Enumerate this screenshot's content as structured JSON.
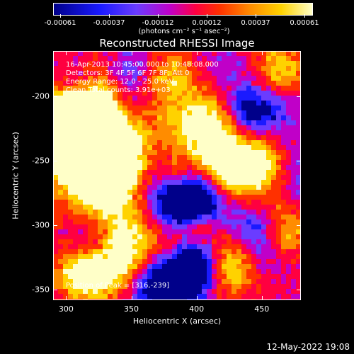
{
  "colorbar": {
    "tick_labels": [
      "-0.00061",
      "-0.00037",
      "-0.00012",
      "0.00012",
      "0.00037",
      "0.00061"
    ],
    "units": "(photons cm⁻² s⁻¹ asec⁻²)",
    "colormap": [
      "#00008a",
      "#1a1aff",
      "#6a3cff",
      "#c000c8",
      "#ff0040",
      "#ff3000",
      "#ff8c00",
      "#ffd200",
      "#ffffc8"
    ]
  },
  "plot": {
    "title": "Reconstructed RHESSI Image",
    "xlabel": "Heliocentric X (arcsec)",
    "ylabel": "Heliocentric Y (arcsec)",
    "xlim": [
      290,
      480
    ],
    "ylim": [
      -358,
      -165
    ],
    "x_ticks": [
      "300",
      "350",
      "400",
      "450"
    ],
    "y_ticks": [
      "-200",
      "-250",
      "-300",
      "-350"
    ],
    "x_tick_values": [
      300,
      350,
      400,
      450
    ],
    "y_tick_values": [
      -200,
      -250,
      -300,
      -350
    ]
  },
  "overlay": {
    "line1": "16-Apr-2013 10:45:00.000 to 10:48:08.000",
    "line2": "Detectors: 3F 4F 5F 6F 7F 8F; Att 0",
    "line3": "Energy Range: 12.0 - 25.0 keV",
    "line4": "Clean     Total counts: 3.91e+03",
    "peak": "Position of Peak = [316,-239]"
  },
  "footer": {
    "date": "12-May-2022 19:08"
  }
}
